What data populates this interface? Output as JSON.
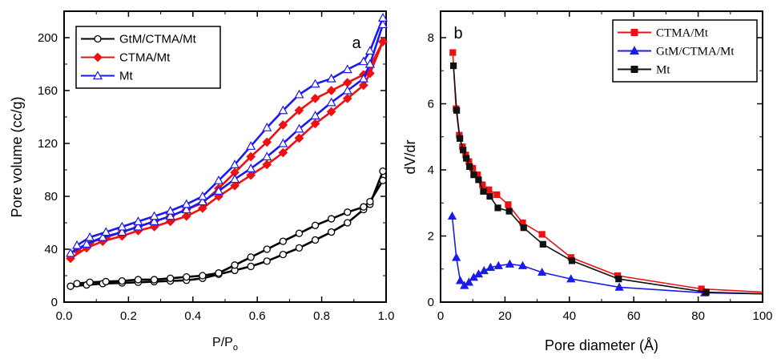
{
  "chart_data": [
    {
      "type": "line",
      "panel_label": "a",
      "xlabel": "P/P",
      "xlabel_sub": "o",
      "ylabel": "Pore volume (cc/g)",
      "xlim": [
        0.0,
        1.0
      ],
      "ylim": [
        0,
        220
      ],
      "xticks": [
        0.0,
        0.2,
        0.4,
        0.6,
        0.8,
        1.0
      ],
      "xtick_labels": [
        "0.0",
        "0.2",
        "0.4",
        "0.6",
        "0.8",
        "1.0"
      ],
      "yticks": [
        0,
        40,
        80,
        120,
        160,
        200
      ],
      "ytick_labels": [
        "0",
        "40",
        "80",
        "120",
        "160",
        "200"
      ],
      "legend_position": "top-left",
      "series": [
        {
          "name": "GtM/CTMA/Mt",
          "color": "#000000",
          "marker": "circle-open",
          "adsorption": {
            "x": [
              0.02,
              0.07,
              0.12,
              0.18,
              0.23,
              0.28,
              0.33,
              0.38,
              0.43,
              0.48,
              0.53,
              0.58,
              0.63,
              0.68,
              0.73,
              0.78,
              0.83,
              0.88,
              0.93,
              0.95,
              0.99
            ],
            "y": [
              12,
              13,
              14,
              14.5,
              15,
              15.5,
              16,
              16.5,
              18,
              21,
              24,
              27,
              31,
              36,
              41,
              47,
              53,
              60,
              70,
              74,
              99
            ]
          },
          "desorption": {
            "x": [
              0.99,
              0.95,
              0.93,
              0.88,
              0.83,
              0.78,
              0.73,
              0.68,
              0.63,
              0.58,
              0.53,
              0.48,
              0.43,
              0.38,
              0.33,
              0.28,
              0.23,
              0.18,
              0.13,
              0.08,
              0.04
            ],
            "y": [
              92,
              76,
              72,
              68,
              63,
              58,
              52,
              46,
              40,
              34,
              28,
              22,
              20,
              19,
              18,
              17,
              17,
              16,
              15.5,
              15,
              14
            ]
          }
        },
        {
          "name": "CTMA/Mt",
          "color": "#ee1111",
          "marker": "diamond-filled",
          "adsorption": {
            "x": [
              0.02,
              0.07,
              0.12,
              0.18,
              0.23,
              0.28,
              0.33,
              0.38,
              0.43,
              0.48,
              0.53,
              0.58,
              0.63,
              0.68,
              0.73,
              0.78,
              0.83,
              0.88,
              0.93,
              0.95,
              0.99
            ],
            "y": [
              33,
              41,
              46,
              50,
              54,
              57,
              61,
              65,
              71,
              80,
              88,
              96,
              104,
              113,
              124,
              135,
              144,
              154,
              164,
              173,
              197
            ]
          },
          "desorption": {
            "x": [
              0.99,
              0.95,
              0.93,
              0.88,
              0.83,
              0.78,
              0.73,
              0.68,
              0.63,
              0.58,
              0.53,
              0.48,
              0.43,
              0.38,
              0.33,
              0.28,
              0.23,
              0.18,
              0.13,
              0.08,
              0.04
            ],
            "y": [
              197,
              178,
              172,
              166,
              160,
              154,
              145,
              134,
              121,
              110,
              98,
              86,
              75,
              70,
              65,
              61,
              57,
              53,
              49,
              45,
              39
            ]
          }
        },
        {
          "name": "Mt",
          "color": "#1a1aee",
          "marker": "triangle-open",
          "adsorption": {
            "x": [
              0.02,
              0.07,
              0.12,
              0.18,
              0.23,
              0.28,
              0.33,
              0.38,
              0.43,
              0.48,
              0.53,
              0.58,
              0.63,
              0.68,
              0.73,
              0.78,
              0.83,
              0.88,
              0.93,
              0.95,
              0.99
            ],
            "y": [
              37,
              44,
              49,
              53,
              57,
              61,
              65,
              70,
              76,
              84,
              93,
              101,
              110,
              120,
              131,
              141,
              151,
              160,
              169,
              180,
              210
            ]
          },
          "desorption": {
            "x": [
              0.99,
              0.95,
              0.93,
              0.88,
              0.83,
              0.78,
              0.73,
              0.68,
              0.63,
              0.58,
              0.53,
              0.48,
              0.43,
              0.38,
              0.33,
              0.28,
              0.23,
              0.18,
              0.13,
              0.08,
              0.04
            ],
            "y": [
              215,
              190,
              182,
              176,
              169,
              165,
              157,
              145,
              132,
              118,
              104,
              92,
              80,
              74,
              69,
              65,
              61,
              57,
              53,
              49,
              43
            ]
          }
        }
      ]
    },
    {
      "type": "line",
      "panel_label": "b",
      "xlabel": "Pore diameter (Å)",
      "ylabel": "dV/dr",
      "xlim": [
        0,
        100
      ],
      "ylim": [
        0,
        8.8
      ],
      "xticks": [
        0,
        20,
        40,
        60,
        80,
        100
      ],
      "xtick_labels": [
        "0",
        "20",
        "40",
        "60",
        "80",
        "100"
      ],
      "yticks": [
        0,
        2,
        4,
        6,
        8
      ],
      "ytick_labels": [
        "0",
        "2",
        "4",
        "6",
        "8"
      ],
      "legend_position": "top-right",
      "series": [
        {
          "name": "CTMA/Mt",
          "color": "#ee1111",
          "marker": "square-filled",
          "x": [
            3.8,
            4.8,
            5.8,
            6.8,
            7.8,
            8.8,
            10.0,
            11.5,
            13.0,
            15.0,
            17.5,
            21.0,
            25.5,
            31.5,
            40.5,
            55.0,
            81.0,
            100
          ],
          "y": [
            7.55,
            5.85,
            5.05,
            4.7,
            4.45,
            4.25,
            4.05,
            3.85,
            3.55,
            3.4,
            3.25,
            2.95,
            2.4,
            2.05,
            1.35,
            0.8,
            0.4,
            0.3
          ]
        },
        {
          "name": "GtM/CTMA/Mt",
          "color": "#1a1aee",
          "marker": "triangle-filled",
          "x": [
            3.6,
            4.9,
            6.1,
            7.4,
            8.8,
            10.3,
            11.8,
            13.5,
            15.5,
            18.0,
            21.5,
            25.5,
            31.5,
            40.5,
            55.5,
            82.0,
            100
          ],
          "y": [
            2.6,
            1.35,
            0.65,
            0.5,
            0.6,
            0.75,
            0.85,
            0.95,
            1.05,
            1.1,
            1.15,
            1.1,
            0.9,
            0.7,
            0.45,
            0.28,
            0.25
          ]
        },
        {
          "name": "Mt",
          "color": "#111111",
          "marker": "square-filled",
          "x": [
            4.0,
            5.0,
            6.0,
            7.0,
            8.0,
            9.0,
            10.3,
            11.8,
            13.3,
            15.3,
            17.8,
            21.3,
            25.8,
            31.8,
            40.8,
            55.3,
            82.5,
            100
          ],
          "y": [
            7.15,
            5.8,
            4.95,
            4.6,
            4.35,
            4.1,
            3.85,
            3.7,
            3.35,
            3.2,
            2.85,
            2.75,
            2.25,
            1.75,
            1.25,
            0.7,
            0.3,
            0.25
          ]
        }
      ]
    }
  ]
}
